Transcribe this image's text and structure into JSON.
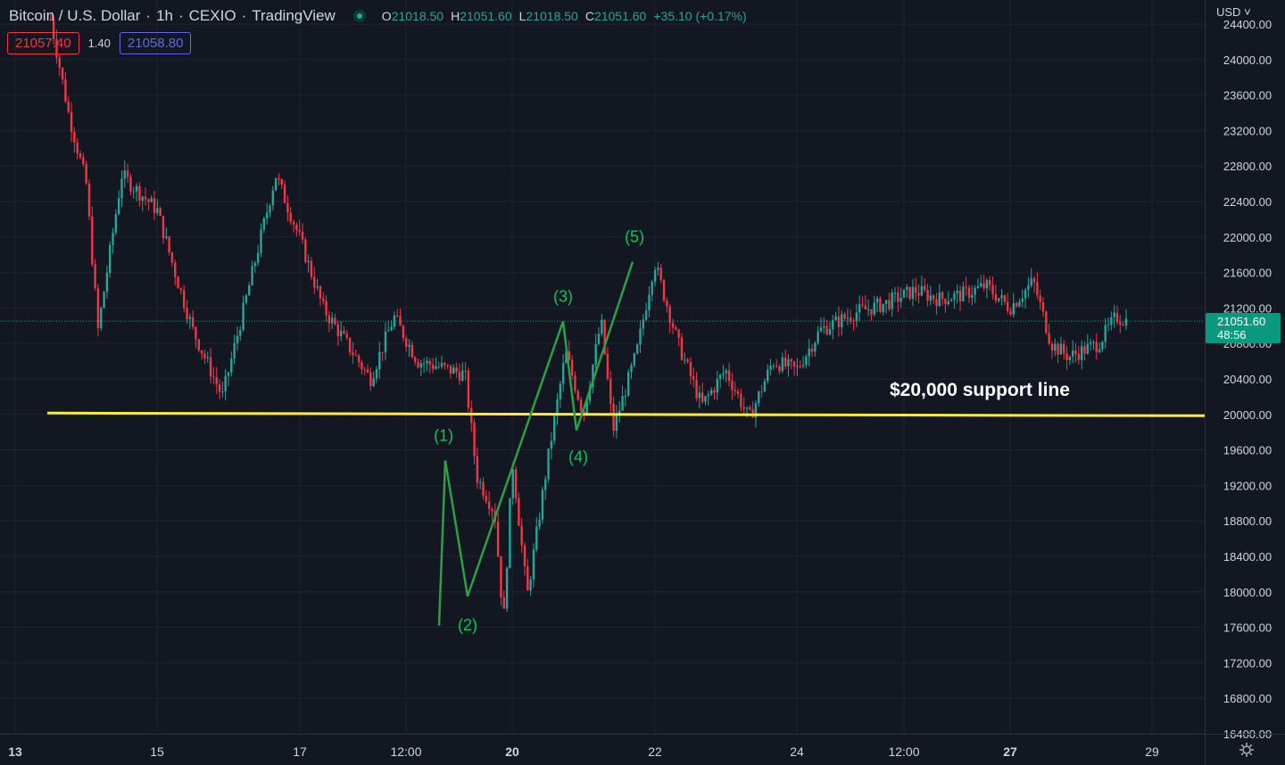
{
  "header": {
    "symbol": "Bitcoin / U.S. Dollar",
    "interval": "1h",
    "exchange": "CEXIO",
    "source": "TradingView",
    "ohlc": {
      "o_label": "O",
      "o": "21018.50",
      "h_label": "H",
      "h": "21051.60",
      "l_label": "L",
      "l": "21018.50",
      "c_label": "C",
      "c": "21051.60",
      "change": "+35.10 (+0.17%)"
    }
  },
  "quotes": {
    "sell": "21057.40",
    "spread": "1.40",
    "buy": "21058.80"
  },
  "currency": "USD",
  "current_price": {
    "price": "21051.60",
    "countdown": "48:56"
  },
  "annotation": "$20,000 support line",
  "colors": {
    "background": "#131722",
    "up": "#26a69a",
    "down": "#f23645",
    "support": "#ffeb3b",
    "wave": "#00c853",
    "wave_line": "#2e9e47",
    "price_tag": "#089981"
  },
  "chart_data": {
    "type": "candlestick",
    "y_axis": {
      "ticks": [
        "24400.00",
        "24000.00",
        "23600.00",
        "23200.00",
        "22800.00",
        "22400.00",
        "22000.00",
        "21600.00",
        "21200.00",
        "20800.00",
        "20400.00",
        "20000.00",
        "19600.00",
        "19200.00",
        "18800.00",
        "18400.00",
        "18000.00",
        "17600.00",
        "17200.00",
        "16800.00",
        "16400.00"
      ],
      "range": [
        16400,
        24400
      ]
    },
    "x_axis": {
      "ticks": [
        "13",
        "15",
        "17",
        "12:00",
        "20",
        "22",
        "24",
        "12:00",
        "27",
        "29"
      ]
    },
    "grid": true,
    "current_price": 21051.6,
    "support_line": {
      "label": "$20,000 support line",
      "value": 20000
    },
    "elliott_wave": [
      {
        "label": "(1)",
        "value": 19480
      },
      {
        "label": "(2)",
        "value": 17950
      },
      {
        "label": "(3)",
        "value": 21050
      },
      {
        "label": "(4)",
        "value": 19820
      },
      {
        "label": "(5)",
        "value": 21720
      }
    ],
    "price_path": [
      {
        "x": "13 12:00",
        "y": 24450
      },
      {
        "x": "13 18:00",
        "y": 23400
      },
      {
        "x": "14 00:00",
        "y": 22600
      },
      {
        "x": "14 04:00",
        "y": 20950
      },
      {
        "x": "14 12:00",
        "y": 22700
      },
      {
        "x": "15 00:00",
        "y": 22300
      },
      {
        "x": "15 06:00",
        "y": 21600
      },
      {
        "x": "15 12:00",
        "y": 20950
      },
      {
        "x": "15 22:00",
        "y": 20200
      },
      {
        "x": "16 06:00",
        "y": 21300
      },
      {
        "x": "16 16:00",
        "y": 22700
      },
      {
        "x": "17 00:00",
        "y": 22000
      },
      {
        "x": "17 08:00",
        "y": 21200
      },
      {
        "x": "17 18:00",
        "y": 20700
      },
      {
        "x": "18 00:00",
        "y": 20400
      },
      {
        "x": "18 08:00",
        "y": 21100
      },
      {
        "x": "18 16:00",
        "y": 20600
      },
      {
        "x": "18 22:00",
        "y": 20550
      },
      {
        "x": "19 08:00",
        "y": 20450
      },
      {
        "x": "19 12:00",
        "y": 19300
      },
      {
        "x": "19 18:00",
        "y": 18900
      },
      {
        "x": "19 21:00",
        "y": 17650
      },
      {
        "x": "20 00:00",
        "y": 19480
      },
      {
        "x": "20 05:00",
        "y": 17950
      },
      {
        "x": "20 12:00",
        "y": 19500
      },
      {
        "x": "20 18:00",
        "y": 20700
      },
      {
        "x": "21 00:00",
        "y": 20000
      },
      {
        "x": "21 06:00",
        "y": 21050
      },
      {
        "x": "21 10:00",
        "y": 19820
      },
      {
        "x": "21 18:00",
        "y": 20700
      },
      {
        "x": "22 00:00",
        "y": 21720
      },
      {
        "x": "22 08:00",
        "y": 20800
      },
      {
        "x": "22 16:00",
        "y": 20100
      },
      {
        "x": "23 00:00",
        "y": 20500
      },
      {
        "x": "23 08:00",
        "y": 19950
      },
      {
        "x": "23 16:00",
        "y": 20600
      },
      {
        "x": "24 00:00",
        "y": 20500
      },
      {
        "x": "24 08:00",
        "y": 20950
      },
      {
        "x": "24 20:00",
        "y": 21150
      },
      {
        "x": "25 06:00",
        "y": 21250
      },
      {
        "x": "25 16:00",
        "y": 21400
      },
      {
        "x": "26 00:00",
        "y": 21300
      },
      {
        "x": "26 08:00",
        "y": 21350
      },
      {
        "x": "26 16:00",
        "y": 21450
      },
      {
        "x": "27 00:00",
        "y": 21200
      },
      {
        "x": "27 08:00",
        "y": 21500
      },
      {
        "x": "27 14:00",
        "y": 20800
      },
      {
        "x": "27 20:00",
        "y": 20650
      },
      {
        "x": "28 06:00",
        "y": 20800
      },
      {
        "x": "28 12:00",
        "y": 21100
      },
      {
        "x": "28 16:00",
        "y": 21051
      }
    ]
  }
}
